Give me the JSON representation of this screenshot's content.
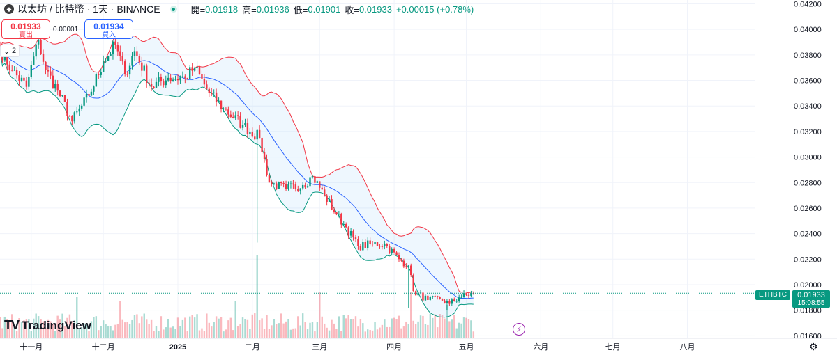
{
  "header": {
    "title": "以太坊 / 比特幣 · 1天 · BINANCE",
    "open_label": "開=",
    "open": "0.01918",
    "high_label": "高=",
    "high": "0.01936",
    "low_label": "低=",
    "low": "0.01901",
    "close_label": "收=",
    "close": "0.01933",
    "change": "+0.00015 (+0.78%)"
  },
  "trade": {
    "sell_price": "0.01933",
    "sell_label": "賣出",
    "buy_price": "0.01934",
    "buy_label": "買入",
    "spread": "0.00001"
  },
  "indicators_count": "2",
  "logo_text": "TradingView",
  "price_tag": {
    "symbol": "ETHBTC",
    "price": "0.01933",
    "countdown": "15:08:55"
  },
  "colors": {
    "up": "#089981",
    "down": "#f23645",
    "basis": "#2962ff",
    "upper": "#f23645",
    "lower": "#089981",
    "fill": "#2196f3"
  },
  "chart_data": {
    "type": "candlestick",
    "y_ticks": [
      "0.04200",
      "0.04000",
      "0.03800",
      "0.03600",
      "0.03400",
      "0.03200",
      "0.03000",
      "0.02800",
      "0.02600",
      "0.02400",
      "0.02200",
      "0.02000",
      "0.01800",
      "0.01600"
    ],
    "ylim": [
      0.0158,
      0.0423
    ],
    "x_ticks": [
      {
        "label": "十一月",
        "date": "2024-11-01"
      },
      {
        "label": "十二月",
        "date": "2024-12-01"
      },
      {
        "label": "2025",
        "date": "2025-01-01",
        "bold": true
      },
      {
        "label": "二月",
        "date": "2025-02-01"
      },
      {
        "label": "三月",
        "date": "2025-03-01"
      },
      {
        "label": "四月",
        "date": "2025-04-01"
      },
      {
        "label": "五月",
        "date": "2025-05-01"
      },
      {
        "label": "六月",
        "date": "2025-06-01"
      },
      {
        "label": "七月",
        "date": "2025-07-01"
      },
      {
        "label": "八月",
        "date": "2025-08-01"
      }
    ],
    "x_start": "2024-10-19",
    "x_end": "2025-08-29",
    "last_close": 0.01933,
    "anchors": [
      [
        "2024-10-19",
        0.0385
      ],
      [
        "2024-10-24",
        0.0368
      ],
      [
        "2024-10-30",
        0.0355
      ],
      [
        "2024-11-04",
        0.0392
      ],
      [
        "2024-11-07",
        0.0368
      ],
      [
        "2024-11-12",
        0.0352
      ],
      [
        "2024-11-18",
        0.0328
      ],
      [
        "2024-11-25",
        0.0348
      ],
      [
        "2024-12-01",
        0.0375
      ],
      [
        "2024-12-06",
        0.0388
      ],
      [
        "2024-12-10",
        0.0365
      ],
      [
        "2024-12-14",
        0.0383
      ],
      [
        "2024-12-21",
        0.0355
      ],
      [
        "2024-12-28",
        0.0362
      ],
      [
        "2025-01-04",
        0.0362
      ],
      [
        "2025-01-08",
        0.037
      ],
      [
        "2025-01-14",
        0.035
      ],
      [
        "2025-01-20",
        0.0338
      ],
      [
        "2025-01-28",
        0.0325
      ],
      [
        "2025-02-04",
        0.0315
      ],
      [
        "2025-02-08",
        0.028
      ],
      [
        "2025-02-15",
        0.0275
      ],
      [
        "2025-02-22",
        0.0278
      ],
      [
        "2025-02-26",
        0.0285
      ],
      [
        "2025-03-03",
        0.027
      ],
      [
        "2025-03-08",
        0.0255
      ],
      [
        "2025-03-12",
        0.0245
      ],
      [
        "2025-03-17",
        0.023
      ],
      [
        "2025-03-23",
        0.0232
      ],
      [
        "2025-03-28",
        0.0232
      ],
      [
        "2025-04-03",
        0.022
      ],
      [
        "2025-04-07",
        0.0215
      ],
      [
        "2025-04-09",
        0.0195
      ],
      [
        "2025-04-15",
        0.0188
      ],
      [
        "2025-04-20",
        0.0189
      ],
      [
        "2025-04-24",
        0.0185
      ],
      [
        "2025-04-28",
        0.019
      ],
      [
        "2025-05-04",
        0.01933
      ]
    ],
    "spikes": [
      {
        "date": "2025-02-03",
        "low": 0.0233
      },
      {
        "date": "2025-04-07",
        "low": 0.0182
      },
      {
        "date": "2025-04-23",
        "low": 0.018
      }
    ],
    "volume_spikes": [
      {
        "date": "2025-02-03",
        "height": 1.0
      },
      {
        "date": "2025-03-01",
        "height": 0.55
      },
      {
        "date": "2024-11-20",
        "height": 0.5
      },
      {
        "date": "2024-12-08",
        "height": 0.45
      },
      {
        "date": "2025-01-25",
        "height": 0.45
      },
      {
        "date": "2025-04-08",
        "height": 0.55
      },
      {
        "date": "2025-04-23",
        "height": 0.4
      }
    ],
    "bollinger": {
      "period": 20,
      "stddev": 2
    },
    "dotted_last_price_line": true
  }
}
